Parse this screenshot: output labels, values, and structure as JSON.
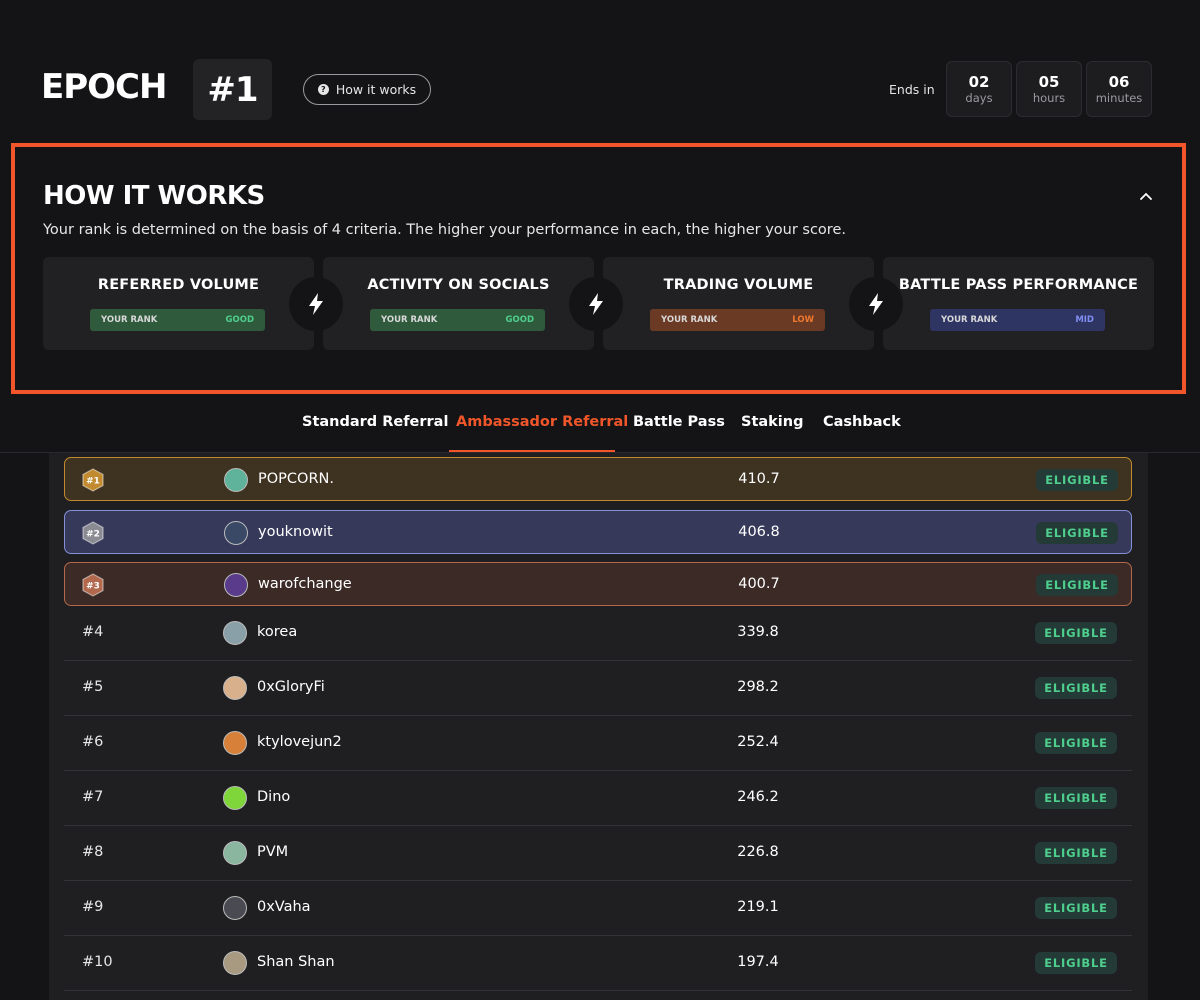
{
  "header": {
    "epoch_label": "EPOCH",
    "epoch_number": "#1",
    "how_it_works_label": "How it works",
    "ends_in_label": "Ends in",
    "timer": [
      {
        "value": "02",
        "unit": "days"
      },
      {
        "value": "05",
        "unit": "hours"
      },
      {
        "value": "06",
        "unit": "minutes"
      }
    ]
  },
  "panel": {
    "title": "HOW IT WORKS",
    "description": "Your rank is determined on the basis of 4 criteria. The higher your performance in each, the higher your score.",
    "criteria": [
      {
        "title": "REFERRED VOLUME",
        "rank_label": "YOUR RANK",
        "level": "GOOD",
        "bar_color": "#2f5a3c",
        "level_color": "#4fcf8e"
      },
      {
        "title": "ACTIVITY ON SOCIALS",
        "rank_label": "YOUR RANK",
        "level": "GOOD",
        "bar_color": "#2f5a3c",
        "level_color": "#4fcf8e"
      },
      {
        "title": "TRADING VOLUME",
        "rank_label": "YOUR RANK",
        "level": "LOW",
        "bar_color": "#6b3a24",
        "level_color": "#f0782f"
      },
      {
        "title": "BATTLE PASS PERFORMANCE",
        "rank_label": "YOUR RANK",
        "level": "MID",
        "bar_color": "#2e3563",
        "level_color": "#7f8ef0"
      }
    ]
  },
  "tabs": [
    {
      "label": "Standard Referral",
      "active": false
    },
    {
      "label": "Ambassador Referral",
      "active": true
    },
    {
      "label": "Battle Pass",
      "active": false
    },
    {
      "label": "Staking",
      "active": false
    },
    {
      "label": "Cashback",
      "active": false
    }
  ],
  "leaderboard": [
    {
      "rank": "#1",
      "name": "POPCORN.",
      "score": "410.7",
      "status": "ELIGIBLE"
    },
    {
      "rank": "#2",
      "name": "youknowit",
      "score": "406.8",
      "status": "ELIGIBLE"
    },
    {
      "rank": "#3",
      "name": "warofchange",
      "score": "400.7",
      "status": "ELIGIBLE"
    },
    {
      "rank": "#4",
      "name": "korea",
      "score": "339.8",
      "status": "ELIGIBLE"
    },
    {
      "rank": "#5",
      "name": "0xGloryFi",
      "score": "298.2",
      "status": "ELIGIBLE"
    },
    {
      "rank": "#6",
      "name": "ktylovejun2",
      "score": "252.4",
      "status": "ELIGIBLE"
    },
    {
      "rank": "#7",
      "name": "Dino",
      "score": "246.2",
      "status": "ELIGIBLE"
    },
    {
      "rank": "#8",
      "name": "PVM",
      "score": "226.8",
      "status": "ELIGIBLE"
    },
    {
      "rank": "#9",
      "name": "0xVaha",
      "score": "219.1",
      "status": "ELIGIBLE"
    },
    {
      "rank": "#10",
      "name": "Shan Shan",
      "score": "197.4",
      "status": "ELIGIBLE"
    }
  ],
  "colors": {
    "accent": "#f0562a",
    "eligible": "#4fcf8e",
    "gold": "#c28a2e",
    "silver": "#8590d6",
    "bronze": "#b1684c"
  }
}
